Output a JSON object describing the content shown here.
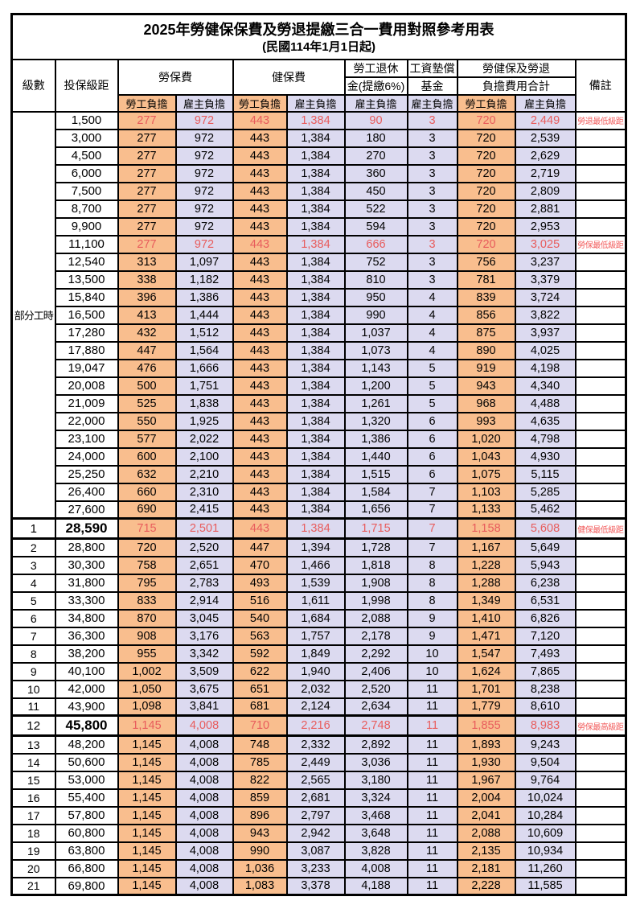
{
  "title": "2025年勞健保保費及勞退提繳三合一費用對照參考用表",
  "subtitle": "(民國114年1月1日起)",
  "header": {
    "level": "級數",
    "bracket": "投保級距",
    "labor_fee": "勞保費",
    "health_fee": "健保費",
    "pension_l1": "勞工退休",
    "pension_l2": "金(提繳6%)",
    "wage_fund_l1": "工資墊償",
    "wage_fund_l2": "基金",
    "total_l1": "勞健保及勞退",
    "total_l2": "負擔費用合計",
    "note": "備註",
    "employee_label": "勞工負擔",
    "employer_label": "雇主負擔"
  },
  "part_time": {
    "label": "部分工時",
    "rowspan": 23
  },
  "colors": {
    "employee_bg": "#F9BE8E",
    "employer_bg": "#DCDAF0",
    "highlight_text": "#E85C5C",
    "note_text": "#F25B5B",
    "grid": "#000000"
  },
  "rows": [
    {
      "level": "",
      "bracket": "1,500",
      "li_emp": "277",
      "li_er": "972",
      "hi_emp": "443",
      "hi_er": "1,384",
      "pension": "90",
      "wage": "3",
      "tot_emp": "720",
      "tot_er": "2,449",
      "note": "勞退最低級距",
      "hl": true,
      "em": false
    },
    {
      "level": "",
      "bracket": "3,000",
      "li_emp": "277",
      "li_er": "972",
      "hi_emp": "443",
      "hi_er": "1,384",
      "pension": "180",
      "wage": "3",
      "tot_emp": "720",
      "tot_er": "2,539",
      "note": "",
      "hl": false,
      "em": false
    },
    {
      "level": "",
      "bracket": "4,500",
      "li_emp": "277",
      "li_er": "972",
      "hi_emp": "443",
      "hi_er": "1,384",
      "pension": "270",
      "wage": "3",
      "tot_emp": "720",
      "tot_er": "2,629",
      "note": "",
      "hl": false,
      "em": false
    },
    {
      "level": "",
      "bracket": "6,000",
      "li_emp": "277",
      "li_er": "972",
      "hi_emp": "443",
      "hi_er": "1,384",
      "pension": "360",
      "wage": "3",
      "tot_emp": "720",
      "tot_er": "2,719",
      "note": "",
      "hl": false,
      "em": false
    },
    {
      "level": "",
      "bracket": "7,500",
      "li_emp": "277",
      "li_er": "972",
      "hi_emp": "443",
      "hi_er": "1,384",
      "pension": "450",
      "wage": "3",
      "tot_emp": "720",
      "tot_er": "2,809",
      "note": "",
      "hl": false,
      "em": false
    },
    {
      "level": "",
      "bracket": "8,700",
      "li_emp": "277",
      "li_er": "972",
      "hi_emp": "443",
      "hi_er": "1,384",
      "pension": "522",
      "wage": "3",
      "tot_emp": "720",
      "tot_er": "2,881",
      "note": "",
      "hl": false,
      "em": false
    },
    {
      "level": "",
      "bracket": "9,900",
      "li_emp": "277",
      "li_er": "972",
      "hi_emp": "443",
      "hi_er": "1,384",
      "pension": "594",
      "wage": "3",
      "tot_emp": "720",
      "tot_er": "2,953",
      "note": "",
      "hl": false,
      "em": false
    },
    {
      "level": "",
      "bracket": "11,100",
      "li_emp": "277",
      "li_er": "972",
      "hi_emp": "443",
      "hi_er": "1,384",
      "pension": "666",
      "wage": "3",
      "tot_emp": "720",
      "tot_er": "3,025",
      "note": "勞保最低級距",
      "hl": true,
      "em": false
    },
    {
      "level": "",
      "bracket": "12,540",
      "li_emp": "313",
      "li_er": "1,097",
      "hi_emp": "443",
      "hi_er": "1,384",
      "pension": "752",
      "wage": "3",
      "tot_emp": "756",
      "tot_er": "3,237",
      "note": "",
      "hl": false,
      "em": false
    },
    {
      "level": "",
      "bracket": "13,500",
      "li_emp": "338",
      "li_er": "1,182",
      "hi_emp": "443",
      "hi_er": "1,384",
      "pension": "810",
      "wage": "3",
      "tot_emp": "781",
      "tot_er": "3,379",
      "note": "",
      "hl": false,
      "em": false
    },
    {
      "level": "",
      "bracket": "15,840",
      "li_emp": "396",
      "li_er": "1,386",
      "hi_emp": "443",
      "hi_er": "1,384",
      "pension": "950",
      "wage": "4",
      "tot_emp": "839",
      "tot_er": "3,724",
      "note": "",
      "hl": false,
      "em": false
    },
    {
      "level": "",
      "bracket": "16,500",
      "li_emp": "413",
      "li_er": "1,444",
      "hi_emp": "443",
      "hi_er": "1,384",
      "pension": "990",
      "wage": "4",
      "tot_emp": "856",
      "tot_er": "3,822",
      "note": "",
      "hl": false,
      "em": false
    },
    {
      "level": "",
      "bracket": "17,280",
      "li_emp": "432",
      "li_er": "1,512",
      "hi_emp": "443",
      "hi_er": "1,384",
      "pension": "1,037",
      "wage": "4",
      "tot_emp": "875",
      "tot_er": "3,937",
      "note": "",
      "hl": false,
      "em": false
    },
    {
      "level": "",
      "bracket": "17,880",
      "li_emp": "447",
      "li_er": "1,564",
      "hi_emp": "443",
      "hi_er": "1,384",
      "pension": "1,073",
      "wage": "4",
      "tot_emp": "890",
      "tot_er": "4,025",
      "note": "",
      "hl": false,
      "em": false
    },
    {
      "level": "",
      "bracket": "19,047",
      "li_emp": "476",
      "li_er": "1,666",
      "hi_emp": "443",
      "hi_er": "1,384",
      "pension": "1,143",
      "wage": "5",
      "tot_emp": "919",
      "tot_er": "4,198",
      "note": "",
      "hl": false,
      "em": false
    },
    {
      "level": "",
      "bracket": "20,008",
      "li_emp": "500",
      "li_er": "1,751",
      "hi_emp": "443",
      "hi_er": "1,384",
      "pension": "1,200",
      "wage": "5",
      "tot_emp": "943",
      "tot_er": "4,340",
      "note": "",
      "hl": false,
      "em": false
    },
    {
      "level": "",
      "bracket": "21,009",
      "li_emp": "525",
      "li_er": "1,838",
      "hi_emp": "443",
      "hi_er": "1,384",
      "pension": "1,261",
      "wage": "5",
      "tot_emp": "968",
      "tot_er": "4,488",
      "note": "",
      "hl": false,
      "em": false
    },
    {
      "level": "",
      "bracket": "22,000",
      "li_emp": "550",
      "li_er": "1,925",
      "hi_emp": "443",
      "hi_er": "1,384",
      "pension": "1,320",
      "wage": "6",
      "tot_emp": "993",
      "tot_er": "4,635",
      "note": "",
      "hl": false,
      "em": false
    },
    {
      "level": "",
      "bracket": "23,100",
      "li_emp": "577",
      "li_er": "2,022",
      "hi_emp": "443",
      "hi_er": "1,384",
      "pension": "1,386",
      "wage": "6",
      "tot_emp": "1,020",
      "tot_er": "4,798",
      "note": "",
      "hl": false,
      "em": false
    },
    {
      "level": "",
      "bracket": "24,000",
      "li_emp": "600",
      "li_er": "2,100",
      "hi_emp": "443",
      "hi_er": "1,384",
      "pension": "1,440",
      "wage": "6",
      "tot_emp": "1,043",
      "tot_er": "4,930",
      "note": "",
      "hl": false,
      "em": false
    },
    {
      "level": "",
      "bracket": "25,250",
      "li_emp": "632",
      "li_er": "2,210",
      "hi_emp": "443",
      "hi_er": "1,384",
      "pension": "1,515",
      "wage": "6",
      "tot_emp": "1,075",
      "tot_er": "5,115",
      "note": "",
      "hl": false,
      "em": false
    },
    {
      "level": "",
      "bracket": "26,400",
      "li_emp": "660",
      "li_er": "2,310",
      "hi_emp": "443",
      "hi_er": "1,384",
      "pension": "1,584",
      "wage": "7",
      "tot_emp": "1,103",
      "tot_er": "5,285",
      "note": "",
      "hl": false,
      "em": false
    },
    {
      "level": "",
      "bracket": "27,600",
      "li_emp": "690",
      "li_er": "2,415",
      "hi_emp": "443",
      "hi_er": "1,384",
      "pension": "1,656",
      "wage": "7",
      "tot_emp": "1,133",
      "tot_er": "5,462",
      "note": "",
      "hl": false,
      "em": false
    },
    {
      "level": "1",
      "bracket": "28,590",
      "li_emp": "715",
      "li_er": "2,501",
      "hi_emp": "443",
      "hi_er": "1,384",
      "pension": "1,715",
      "wage": "7",
      "tot_emp": "1,158",
      "tot_er": "5,608",
      "note": "健保最低級距",
      "hl": true,
      "em": true
    },
    {
      "level": "2",
      "bracket": "28,800",
      "li_emp": "720",
      "li_er": "2,520",
      "hi_emp": "447",
      "hi_er": "1,394",
      "pension": "1,728",
      "wage": "7",
      "tot_emp": "1,167",
      "tot_er": "5,649",
      "note": "",
      "hl": false,
      "em": false
    },
    {
      "level": "3",
      "bracket": "30,300",
      "li_emp": "758",
      "li_er": "2,651",
      "hi_emp": "470",
      "hi_er": "1,466",
      "pension": "1,818",
      "wage": "8",
      "tot_emp": "1,228",
      "tot_er": "5,943",
      "note": "",
      "hl": false,
      "em": false
    },
    {
      "level": "4",
      "bracket": "31,800",
      "li_emp": "795",
      "li_er": "2,783",
      "hi_emp": "493",
      "hi_er": "1,539",
      "pension": "1,908",
      "wage": "8",
      "tot_emp": "1,288",
      "tot_er": "6,238",
      "note": "",
      "hl": false,
      "em": false
    },
    {
      "level": "5",
      "bracket": "33,300",
      "li_emp": "833",
      "li_er": "2,914",
      "hi_emp": "516",
      "hi_er": "1,611",
      "pension": "1,998",
      "wage": "8",
      "tot_emp": "1,349",
      "tot_er": "6,531",
      "note": "",
      "hl": false,
      "em": false
    },
    {
      "level": "6",
      "bracket": "34,800",
      "li_emp": "870",
      "li_er": "3,045",
      "hi_emp": "540",
      "hi_er": "1,684",
      "pension": "2,088",
      "wage": "9",
      "tot_emp": "1,410",
      "tot_er": "6,826",
      "note": "",
      "hl": false,
      "em": false
    },
    {
      "level": "7",
      "bracket": "36,300",
      "li_emp": "908",
      "li_er": "3,176",
      "hi_emp": "563",
      "hi_er": "1,757",
      "pension": "2,178",
      "wage": "9",
      "tot_emp": "1,471",
      "tot_er": "7,120",
      "note": "",
      "hl": false,
      "em": false
    },
    {
      "level": "8",
      "bracket": "38,200",
      "li_emp": "955",
      "li_er": "3,342",
      "hi_emp": "592",
      "hi_er": "1,849",
      "pension": "2,292",
      "wage": "10",
      "tot_emp": "1,547",
      "tot_er": "7,493",
      "note": "",
      "hl": false,
      "em": false
    },
    {
      "level": "9",
      "bracket": "40,100",
      "li_emp": "1,002",
      "li_er": "3,509",
      "hi_emp": "622",
      "hi_er": "1,940",
      "pension": "2,406",
      "wage": "10",
      "tot_emp": "1,624",
      "tot_er": "7,865",
      "note": "",
      "hl": false,
      "em": false
    },
    {
      "level": "10",
      "bracket": "42,000",
      "li_emp": "1,050",
      "li_er": "3,675",
      "hi_emp": "651",
      "hi_er": "2,032",
      "pension": "2,520",
      "wage": "11",
      "tot_emp": "1,701",
      "tot_er": "8,238",
      "note": "",
      "hl": false,
      "em": false
    },
    {
      "level": "11",
      "bracket": "43,900",
      "li_emp": "1,098",
      "li_er": "3,841",
      "hi_emp": "681",
      "hi_er": "2,124",
      "pension": "2,634",
      "wage": "11",
      "tot_emp": "1,779",
      "tot_er": "8,610",
      "note": "",
      "hl": false,
      "em": false
    },
    {
      "level": "12",
      "bracket": "45,800",
      "li_emp": "1,145",
      "li_er": "4,008",
      "hi_emp": "710",
      "hi_er": "2,216",
      "pension": "2,748",
      "wage": "11",
      "tot_emp": "1,855",
      "tot_er": "8,983",
      "note": "勞保最高級距",
      "hl": true,
      "em": true
    },
    {
      "level": "13",
      "bracket": "48,200",
      "li_emp": "1,145",
      "li_er": "4,008",
      "hi_emp": "748",
      "hi_er": "2,332",
      "pension": "2,892",
      "wage": "11",
      "tot_emp": "1,893",
      "tot_er": "9,243",
      "note": "",
      "hl": false,
      "em": false
    },
    {
      "level": "14",
      "bracket": "50,600",
      "li_emp": "1,145",
      "li_er": "4,008",
      "hi_emp": "785",
      "hi_er": "2,449",
      "pension": "3,036",
      "wage": "11",
      "tot_emp": "1,930",
      "tot_er": "9,504",
      "note": "",
      "hl": false,
      "em": false
    },
    {
      "level": "15",
      "bracket": "53,000",
      "li_emp": "1,145",
      "li_er": "4,008",
      "hi_emp": "822",
      "hi_er": "2,565",
      "pension": "3,180",
      "wage": "11",
      "tot_emp": "1,967",
      "tot_er": "9,764",
      "note": "",
      "hl": false,
      "em": false
    },
    {
      "level": "16",
      "bracket": "55,400",
      "li_emp": "1,145",
      "li_er": "4,008",
      "hi_emp": "859",
      "hi_er": "2,681",
      "pension": "3,324",
      "wage": "11",
      "tot_emp": "2,004",
      "tot_er": "10,024",
      "note": "",
      "hl": false,
      "em": false
    },
    {
      "level": "17",
      "bracket": "57,800",
      "li_emp": "1,145",
      "li_er": "4,008",
      "hi_emp": "896",
      "hi_er": "2,797",
      "pension": "3,468",
      "wage": "11",
      "tot_emp": "2,041",
      "tot_er": "10,284",
      "note": "",
      "hl": false,
      "em": false
    },
    {
      "level": "18",
      "bracket": "60,800",
      "li_emp": "1,145",
      "li_er": "4,008",
      "hi_emp": "943",
      "hi_er": "2,942",
      "pension": "3,648",
      "wage": "11",
      "tot_emp": "2,088",
      "tot_er": "10,609",
      "note": "",
      "hl": false,
      "em": false
    },
    {
      "level": "19",
      "bracket": "63,800",
      "li_emp": "1,145",
      "li_er": "4,008",
      "hi_emp": "990",
      "hi_er": "3,087",
      "pension": "3,828",
      "wage": "11",
      "tot_emp": "2,135",
      "tot_er": "10,934",
      "note": "",
      "hl": false,
      "em": false
    },
    {
      "level": "20",
      "bracket": "66,800",
      "li_emp": "1,145",
      "li_er": "4,008",
      "hi_emp": "1,036",
      "hi_er": "3,233",
      "pension": "4,008",
      "wage": "11",
      "tot_emp": "2,181",
      "tot_er": "11,260",
      "note": "",
      "hl": false,
      "em": false
    },
    {
      "level": "21",
      "bracket": "69,800",
      "li_emp": "1,145",
      "li_er": "4,008",
      "hi_emp": "1,083",
      "hi_er": "3,378",
      "pension": "4,188",
      "wage": "11",
      "tot_emp": "2,228",
      "tot_er": "11,585",
      "note": "",
      "hl": false,
      "em": false
    }
  ]
}
